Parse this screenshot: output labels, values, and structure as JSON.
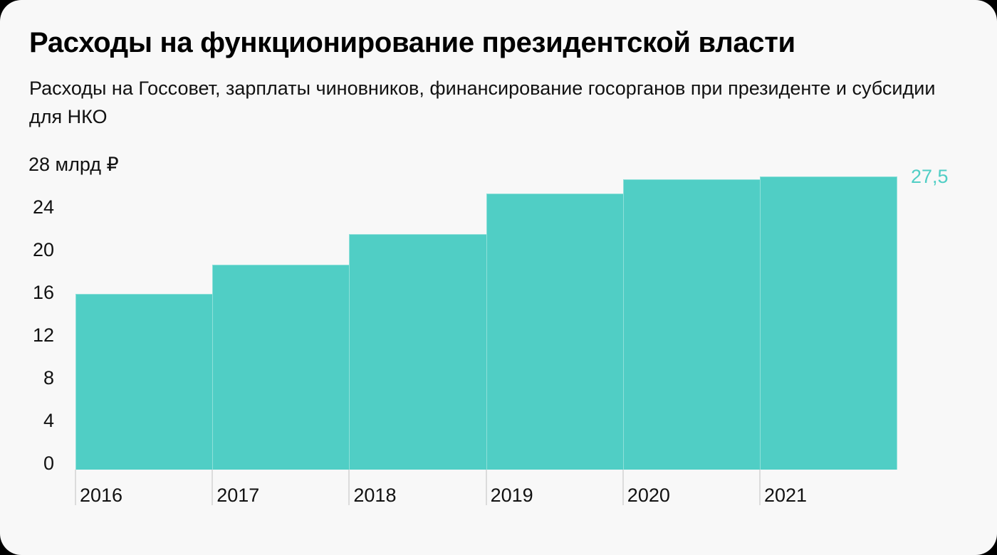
{
  "header": {
    "title": "Расходы на функционирование президентской власти",
    "subtitle": "Расходы на Госсовет, зарплаты чиновников, финансирование госорганов при президенте и субсидии для НКО"
  },
  "colors": {
    "bar": "#50cec5",
    "background": "#f8f8f8",
    "text": "#111111",
    "value_label": "#50cec5"
  },
  "axis": {
    "y_ticks": [
      "28 млрд ₽",
      "24",
      "20",
      "16",
      "12",
      "8",
      "4",
      "0"
    ],
    "x_ticks": [
      "2016",
      "2017",
      "2018",
      "2019",
      "2020",
      "2021"
    ]
  },
  "annotations": {
    "last_value": "27,5"
  },
  "chart_data": {
    "type": "bar",
    "title": "Расходы на функционирование президентской власти",
    "subtitle": "Расходы на Госсовет, зарплаты чиновников, финансирование госорганов при президенте и субсидии для НКО",
    "categories": [
      "2016",
      "2017",
      "2018",
      "2019",
      "2020",
      "2021"
    ],
    "values": [
      16.5,
      19.2,
      22.1,
      25.9,
      27.2,
      27.5
    ],
    "xlabel": "",
    "ylabel": "млрд ₽",
    "ylim": [
      0,
      28
    ],
    "yticks": [
      0,
      4,
      8,
      12,
      16,
      20,
      24,
      28
    ],
    "grid": false,
    "legend": null,
    "annotations": [
      {
        "category": "2021",
        "text": "27,5"
      }
    ]
  }
}
